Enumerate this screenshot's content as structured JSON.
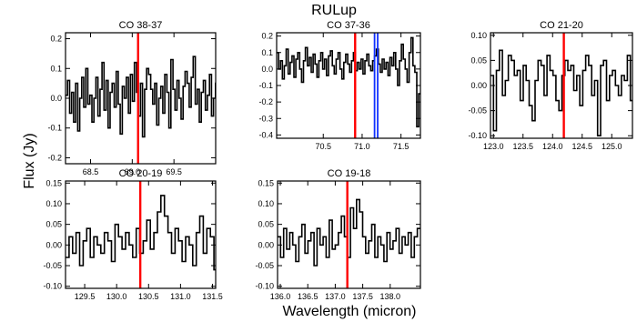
{
  "figure": {
    "title": "RULup",
    "xlabel": "Wavelength (micron)",
    "ylabel": "Flux (Jy)"
  },
  "chart_data": [
    {
      "type": "line",
      "step": true,
      "title": "CO 38-37",
      "xlim": [
        68.2,
        70.0
      ],
      "ylim": [
        -0.22,
        0.22
      ],
      "xticks": [
        68.5,
        69.0,
        69.5
      ],
      "xtick_labels": [
        "68.5",
        "69.0",
        "69.5"
      ],
      "yticks": [
        -0.2,
        -0.1,
        0.0,
        0.1,
        0.2
      ],
      "ytick_labels": [
        "-0.2",
        "-0.1",
        "0.0",
        "0.1",
        "0.2"
      ],
      "red_lines": [
        69.07
      ],
      "blue_lines": [],
      "x0": 68.2,
      "dx": 0.0243,
      "y": [
        0.01,
        0.06,
        -0.05,
        0.02,
        -0.08,
        0.05,
        -0.11,
        0.0,
        0.07,
        -0.03,
        0.1,
        -0.02,
        0.01,
        -0.08,
        0.0,
        0.07,
        -0.06,
        0.03,
        0.12,
        -0.04,
        0.06,
        -0.1,
        0.02,
        0.05,
        -0.03,
        0.09,
        -0.02,
        -0.12,
        0.04,
        0.0,
        0.07,
        -0.05,
        0.08,
        -0.01,
        0.12,
        0.02,
        -0.06,
        0.05,
        -0.13,
        0.03,
        0.1,
        0.08,
        0.03,
        -0.02,
        0.05,
        -0.09,
        0.0,
        0.04,
        -0.05,
        0.08,
        0.02,
        -0.1,
        0.13,
        0.03,
        -0.04,
        0.06,
        0.0,
        -0.07,
        0.04,
        0.09,
        0.05,
        -0.03,
        0.07,
        0.14,
        -0.02,
        0.03,
        -0.08,
        0.02,
        0.06,
        -0.04,
        0.01,
        0.08,
        -0.06,
        0.0,
        0.05
      ]
    },
    {
      "type": "line",
      "step": true,
      "title": "CO 37-36",
      "xlim": [
        69.9,
        71.75
      ],
      "ylim": [
        -0.42,
        0.22
      ],
      "xticks": [
        70.5,
        71.0,
        71.5
      ],
      "xtick_labels": [
        "70.5",
        "71.0",
        "71.5"
      ],
      "yticks": [
        -0.4,
        -0.3,
        -0.2,
        -0.1,
        0.0,
        0.1,
        0.2
      ],
      "ytick_labels": [
        "-0.4",
        "-0.3",
        "-0.2",
        "-0.1",
        "0.0",
        "0.1",
        "0.2"
      ],
      "red_lines": [
        70.91
      ],
      "blue_lines": [
        71.16,
        71.2
      ],
      "x0": 69.9,
      "dx": 0.0247,
      "y": [
        0.1,
        0.0,
        0.05,
        -0.06,
        0.02,
        0.12,
        -0.03,
        0.04,
        0.08,
        -0.05,
        0.06,
        0.1,
        0.0,
        -0.08,
        0.05,
        0.13,
        0.02,
        0.07,
        -0.02,
        0.09,
        0.03,
        -0.05,
        0.05,
        0.1,
        0.0,
        0.06,
        -0.04,
        0.08,
        0.11,
        0.02,
        -0.03,
        0.06,
        0.1,
        0.0,
        -0.06,
        0.04,
        0.09,
        0.03,
        -0.02,
        0.05,
        0.1,
        -0.01,
        0.04,
        0.0,
        0.06,
        -0.03,
        0.05,
        0.09,
        0.02,
        -0.01,
        0.05,
        0.08,
        0.12,
        0.03,
        -0.02,
        0.06,
        0.0,
        0.04,
        -0.04,
        0.07,
        0.02,
        0.1,
        0.0,
        -0.1,
        0.05,
        0.15,
        0.06,
        0.0,
        -0.08,
        0.1,
        0.19,
        0.02,
        -0.02,
        -0.35,
        -0.15
      ]
    },
    {
      "type": "line",
      "step": true,
      "title": "CO 21-20",
      "xlim": [
        122.95,
        125.35
      ],
      "ylim": [
        -0.105,
        0.105
      ],
      "xticks": [
        123.0,
        123.5,
        124.0,
        124.5,
        125.0
      ],
      "xtick_labels": [
        "123.0",
        "123.5",
        "124.0",
        "124.5",
        "125.0"
      ],
      "yticks": [
        -0.1,
        -0.05,
        0.0,
        0.05,
        0.1
      ],
      "ytick_labels": [
        "-0.10",
        "-0.05",
        "0.00",
        "0.05",
        "0.10"
      ],
      "red_lines": [
        124.19
      ],
      "blue_lines": [],
      "x0": 122.95,
      "dx": 0.0503,
      "y": [
        0.02,
        -0.09,
        0.03,
        0.07,
        -0.02,
        0.01,
        0.06,
        0.05,
        0.02,
        0.03,
        -0.03,
        0.04,
        0.01,
        -0.04,
        -0.07,
        0.01,
        0.05,
        0.04,
        -0.02,
        0.06,
        0.03,
        0.02,
        -0.03,
        -0.05,
        0.02,
        0.05,
        0.03,
        0.04,
        -0.01,
        0.02,
        -0.04,
        0.03,
        0.06,
        0.04,
        -0.02,
        0.01,
        -0.1,
        0.04,
        0.05,
        -0.03,
        0.02,
        0.03,
        0.0,
        -0.02,
        0.02,
        0.01,
        0.06,
        -0.03
      ]
    },
    {
      "type": "line",
      "step": true,
      "title": "CO 20-19",
      "xlim": [
        129.2,
        131.55
      ],
      "ylim": [
        -0.105,
        0.155
      ],
      "xticks": [
        129.5,
        130.0,
        130.5,
        131.0,
        131.5
      ],
      "xtick_labels": [
        "129.5",
        "130.0",
        "130.5",
        "131.0",
        "131.5"
      ],
      "yticks": [
        -0.1,
        -0.05,
        0.0,
        0.05,
        0.1,
        0.15
      ],
      "ytick_labels": [
        "-0.10",
        "-0.05",
        "0.00",
        "0.05",
        "0.10",
        "0.15"
      ],
      "red_lines": [
        130.37
      ],
      "blue_lines": [],
      "x0": 129.2,
      "dx": 0.0553,
      "y": [
        -0.03,
        0.02,
        -0.02,
        0.03,
        -0.05,
        0.01,
        0.04,
        -0.03,
        0.02,
        0.0,
        -0.02,
        0.03,
        0.01,
        -0.04,
        0.05,
        0.02,
        -0.01,
        0.03,
        0.0,
        -0.03,
        0.04,
        -0.02,
        0.01,
        0.06,
        -0.01,
        0.03,
        0.08,
        0.12,
        0.07,
        0.03,
        -0.02,
        0.04,
        0.01,
        -0.04,
        0.02,
        0.0,
        -0.05,
        0.03,
        0.07,
        -0.02,
        0.04,
        0.02,
        -0.06
      ]
    },
    {
      "type": "line",
      "step": true,
      "title": "CO 19-18",
      "xlim": [
        135.95,
        138.55
      ],
      "ylim": [
        -0.105,
        0.155
      ],
      "xticks": [
        136.0,
        136.5,
        137.0,
        137.5,
        138.0
      ],
      "xtick_labels": [
        "136.0",
        "136.5",
        "137.0",
        "137.5",
        "138.0"
      ],
      "yticks": [
        -0.1,
        -0.05,
        0.0,
        0.05,
        0.1,
        0.15
      ],
      "ytick_labels": [
        "-0.10",
        "-0.05",
        "0.00",
        "0.05",
        "0.10",
        "0.15"
      ],
      "red_lines": [
        137.22
      ],
      "blue_lines": [],
      "x0": 135.95,
      "dx": 0.0553,
      "y": [
        0.02,
        -0.03,
        0.04,
        -0.01,
        0.03,
        0.0,
        -0.04,
        0.02,
        0.05,
        -0.02,
        0.01,
        0.03,
        -0.05,
        0.04,
        0.0,
        0.02,
        -0.03,
        0.06,
        -0.01,
        0.0,
        0.03,
        0.07,
        0.02,
        -0.03,
        0.09,
        0.04,
        0.11,
        0.08,
        0.02,
        -0.02,
        0.01,
        0.05,
        -0.03,
        0.02,
        0.0,
        -0.04,
        0.03,
        -0.01,
        0.01,
        0.04,
        -0.02,
        0.02,
        0.0,
        0.03,
        -0.03,
        0.02,
        0.04
      ]
    }
  ]
}
